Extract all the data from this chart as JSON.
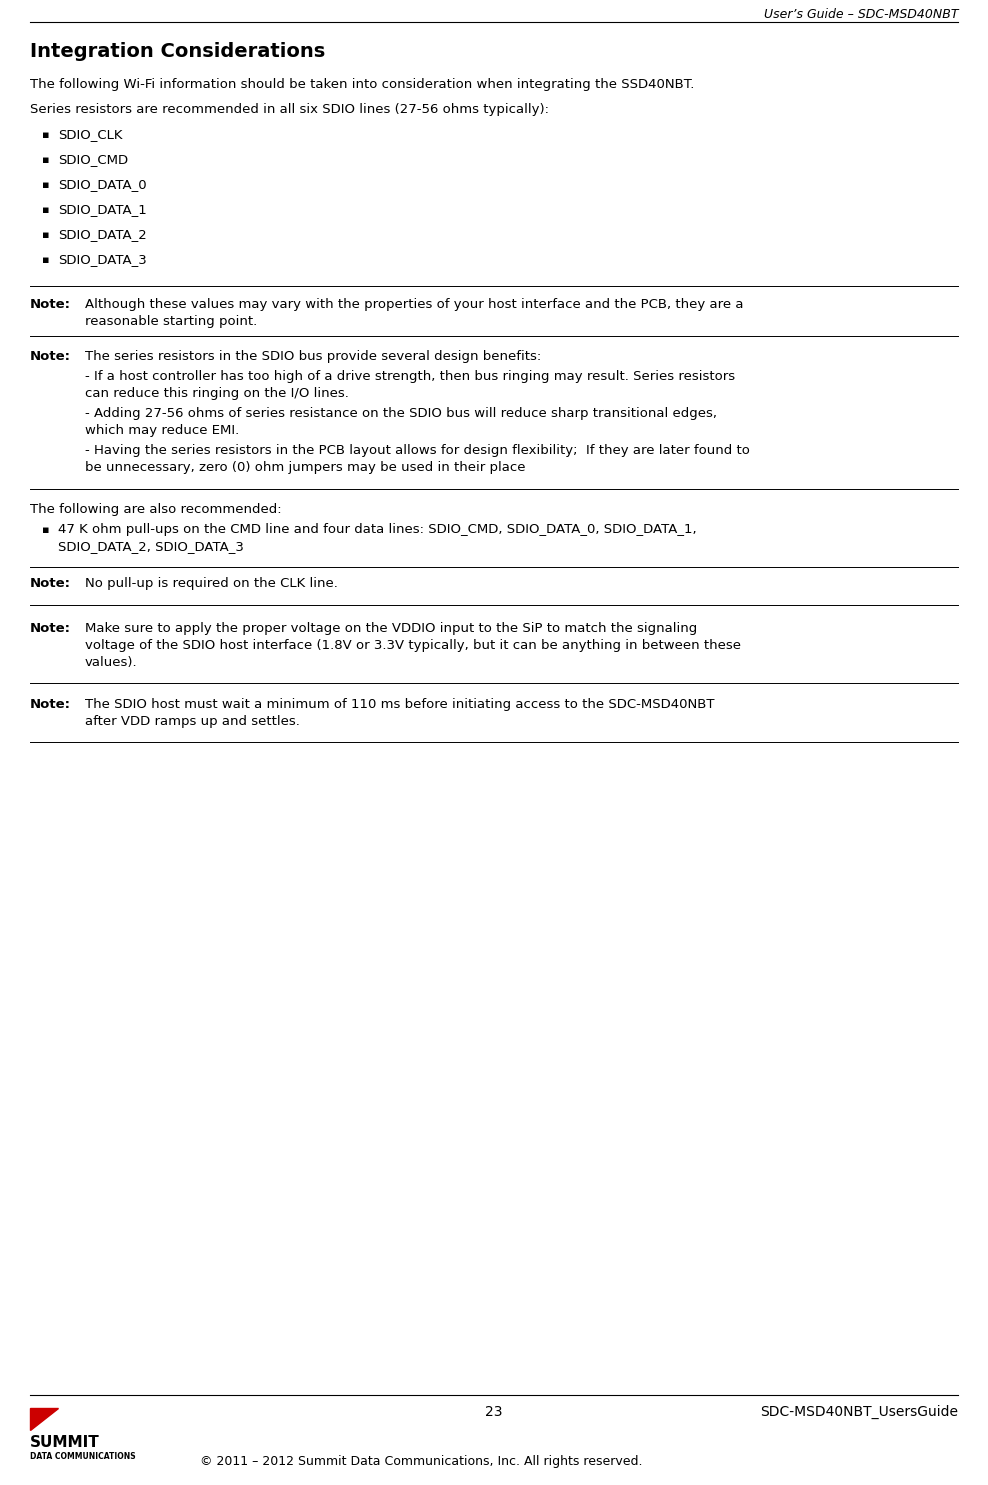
{
  "header_right": "User’s Guide – SDC-MSD40NBT",
  "section_title": "Integration Considerations",
  "para1": "The following Wi-Fi information should be taken into consideration when integrating the SSD40NBT.",
  "para2": "Series resistors are recommended in all six SDIO lines (27-56 ohms typically):",
  "bullet_items": [
    "SDIO_CLK",
    "SDIO_CMD",
    "SDIO_DATA_0",
    "SDIO_DATA_1",
    "SDIO_DATA_2",
    "SDIO_DATA_3"
  ],
  "note1_label": "Note:",
  "note1_line1": "Although these values may vary with the properties of your host interface and the PCB, they are a",
  "note1_line2": "reasonable starting point.",
  "note2_label": "Note:",
  "note2_text": "The series resistors in the SDIO bus provide several design benefits:",
  "note2_bullets": [
    [
      "- If a host controller has too high of a drive strength, then bus ringing may result. Series resistors",
      "can reduce this ringing on the I/O lines."
    ],
    [
      "- Adding 27-56 ohms of series resistance on the SDIO bus will reduce sharp transitional edges,",
      "which may reduce EMI."
    ],
    [
      "- Having the series resistors in the PCB layout allows for design flexibility;  If they are later found to",
      "be unnecessary, zero (0) ohm jumpers may be used in their place"
    ]
  ],
  "para3": "The following are also recommended:",
  "bullet2_line1": "47 K ohm pull-ups on the CMD line and four data lines: SDIO_CMD, SDIO_DATA_0, SDIO_DATA_1,",
  "bullet2_line2": "SDIO_DATA_2, SDIO_DATA_3",
  "note3_label": "Note:",
  "note3_text": "No pull-up is required on the CLK line.",
  "note4_label": "Note:",
  "note4_lines": [
    "Make sure to apply the proper voltage on the VDDIO input to the SiP to match the signaling",
    "voltage of the SDIO host interface (1.8V or 3.3V typically, but it can be anything in between these",
    "values)."
  ],
  "note5_label": "Note:",
  "note5_lines": [
    "The SDIO host must wait a minimum of 110 ms before initiating access to the SDC-MSD40NBT",
    "after VDD ramps up and settles."
  ],
  "footer_page": "23",
  "footer_right": "SDC-MSD40NBT_UsersGuide",
  "footer_copy": "© 2011 – 2012 Summit Data Communications, Inc. All rights reserved.",
  "bg_color": "#ffffff",
  "text_color": "#000000",
  "line_color": "#000000",
  "logo_triangle_color": "#cc0000"
}
